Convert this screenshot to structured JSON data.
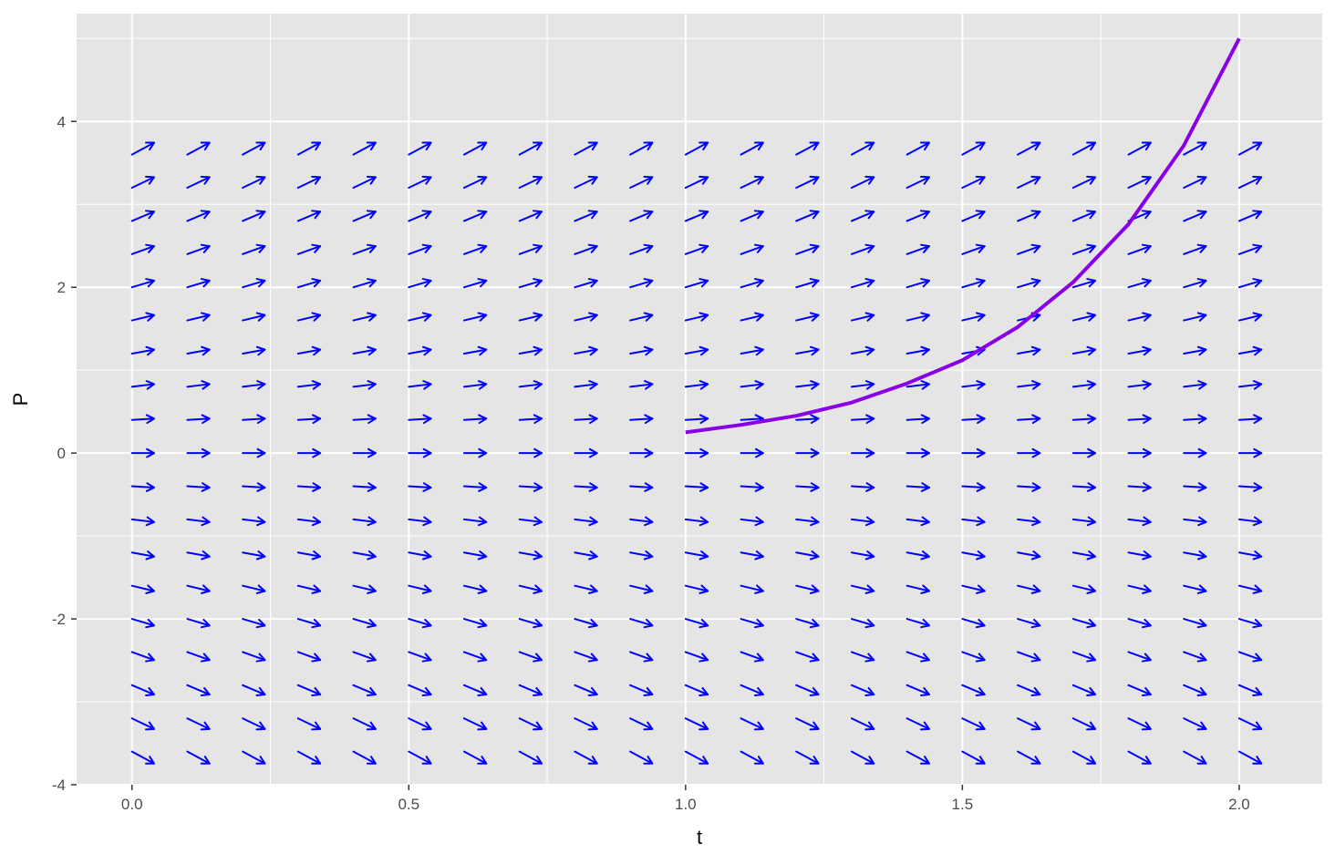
{
  "chart_data": {
    "type": "line",
    "title": "",
    "xlabel": "t",
    "ylabel": "P",
    "xlim": [
      -0.1,
      2.15
    ],
    "ylim": [
      -4.0,
      5.3
    ],
    "x_ticks": [
      0.0,
      0.5,
      1.0,
      1.5,
      2.0
    ],
    "x_tick_labels": [
      "0.0",
      "0.5",
      "1.0",
      "1.5",
      "2.0"
    ],
    "y_ticks": [
      -4,
      -2,
      0,
      2,
      4
    ],
    "y_tick_labels": [
      "-4",
      "-2",
      "0",
      "2",
      "4"
    ],
    "grid": true,
    "slope_field": {
      "t_values": [
        0.0,
        0.1,
        0.2,
        0.3,
        0.4,
        0.5,
        0.6,
        0.7,
        0.8,
        0.9,
        1.0,
        1.1,
        1.2,
        1.3,
        1.4,
        1.5,
        1.6,
        1.7,
        1.8,
        1.9,
        2.0
      ],
      "P_values": [
        -3.6,
        -3.2,
        -2.8,
        -2.4,
        -2.0,
        -1.6,
        -1.2,
        -0.8,
        -0.4,
        0.0,
        0.4,
        0.8,
        1.2,
        1.6,
        2.0,
        2.4,
        2.8,
        3.2,
        3.6
      ],
      "slope_rule": "dP/dt = P",
      "color": "#0000ff"
    },
    "series": [
      {
        "x": [
          1.0,
          1.1,
          1.2,
          1.3,
          1.4,
          1.5,
          1.6,
          1.7,
          1.8,
          1.9,
          2.0
        ],
        "y": [
          0.25,
          0.34,
          0.45,
          0.61,
          0.84,
          1.12,
          1.52,
          2.06,
          2.76,
          3.71,
          5.0
        ],
        "color": "#8a00e6"
      }
    ],
    "colors": {
      "panel_background": "#e5e5e5",
      "grid": "#ffffff",
      "arrows": "#0000ff",
      "curve": "#8a00e6"
    }
  }
}
